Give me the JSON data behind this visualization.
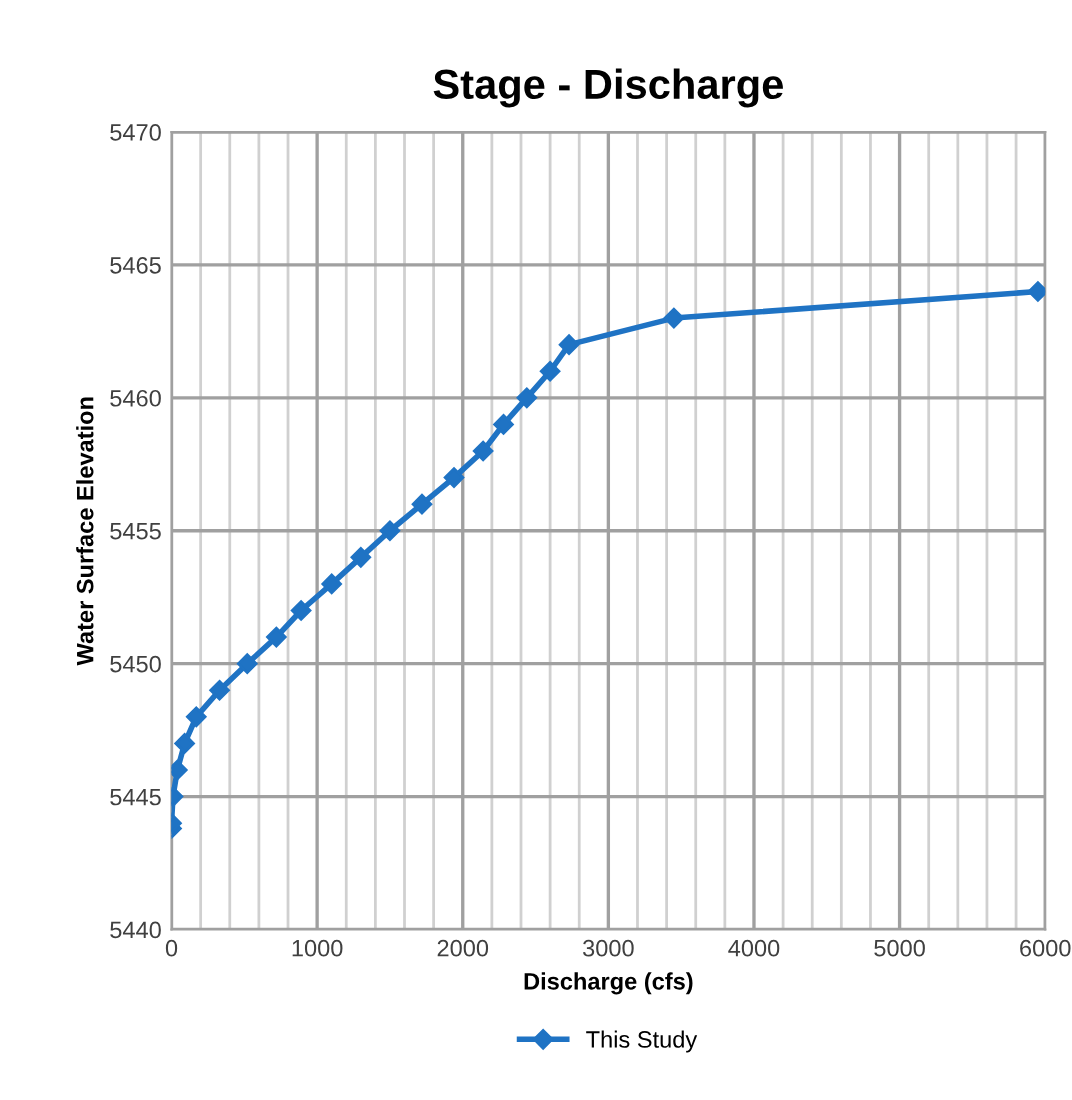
{
  "chart_data": {
    "type": "line",
    "title": "Stage - Discharge",
    "xlabel": "Discharge (cfs)",
    "ylabel": "Water Surface Elevation",
    "xlim": [
      0,
      6000
    ],
    "xticks": [
      0,
      1000,
      2000,
      3000,
      4000,
      5000,
      6000
    ],
    "ylim": [
      5440,
      5470
    ],
    "yticks": [
      5440,
      5445,
      5450,
      5455,
      5460,
      5465,
      5470
    ],
    "grid": true,
    "legend": "bottom",
    "marker": "diamond",
    "line_style": "solid",
    "series": [
      {
        "name": "This Study",
        "color": "#1f73c4",
        "x": [
          0,
          0,
          10,
          40,
          90,
          170,
          330,
          520,
          720,
          890,
          1100,
          1300,
          1500,
          1720,
          1940,
          2140,
          2280,
          2440,
          2600,
          2730,
          3450,
          5950
        ],
        "values": [
          5443.8,
          5444,
          5445,
          5446,
          5447,
          5448,
          5449,
          5450,
          5451,
          5452,
          5453,
          5454,
          5455,
          5456,
          5457,
          5458,
          5459,
          5460,
          5461,
          5462,
          5463,
          5464
        ]
      }
    ]
  }
}
